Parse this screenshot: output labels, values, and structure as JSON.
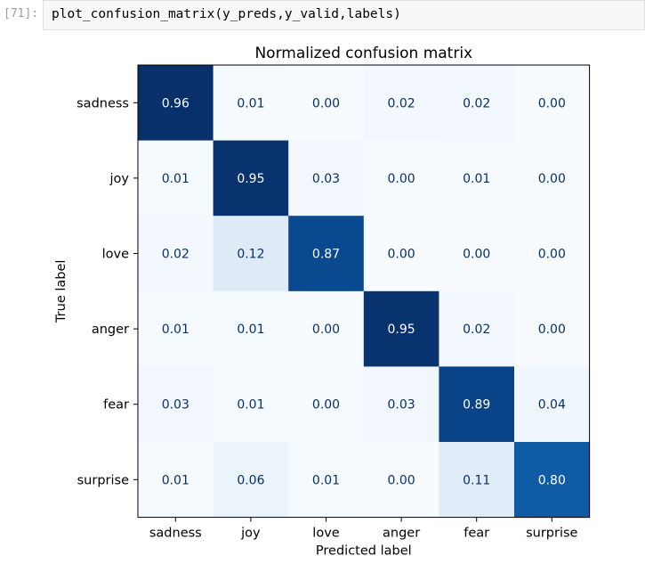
{
  "cell": {
    "prompt": "[71]:",
    "code": "plot_confusion_matrix(y_preds,y_valid,labels)"
  },
  "chart_data": {
    "type": "heatmap",
    "title": "Normalized confusion matrix",
    "xlabel": "Predicted label",
    "ylabel": "True label",
    "x_categories": [
      "sadness",
      "joy",
      "love",
      "anger",
      "fear",
      "surprise"
    ],
    "y_categories": [
      "sadness",
      "joy",
      "love",
      "anger",
      "fear",
      "surprise"
    ],
    "values": [
      [
        0.96,
        0.01,
        0.0,
        0.02,
        0.02,
        0.0
      ],
      [
        0.01,
        0.95,
        0.03,
        0.0,
        0.01,
        0.0
      ],
      [
        0.02,
        0.12,
        0.87,
        0.0,
        0.0,
        0.0
      ],
      [
        0.01,
        0.01,
        0.0,
        0.95,
        0.02,
        0.0
      ],
      [
        0.03,
        0.01,
        0.0,
        0.03,
        0.89,
        0.04
      ],
      [
        0.01,
        0.06,
        0.01,
        0.0,
        0.11,
        0.8
      ]
    ],
    "value_range": [
      0,
      0.96
    ],
    "colormap": "Blues"
  }
}
